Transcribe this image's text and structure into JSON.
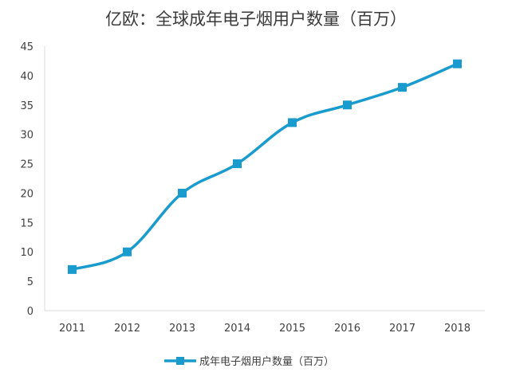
{
  "chart_data": {
    "type": "line",
    "title": "亿欧：全球成年电子烟用户数量（百万）",
    "xlabel": "",
    "ylabel": "",
    "categories": [
      "2011",
      "2012",
      "2013",
      "2014",
      "2015",
      "2016",
      "2017",
      "2018"
    ],
    "series": [
      {
        "name": "成年电子烟用户数量（百万）",
        "values": [
          7,
          10,
          20,
          25,
          32,
          35,
          38,
          42
        ],
        "color": "#1a9bce"
      }
    ],
    "ylim": [
      0,
      45
    ],
    "yticks": [
      0,
      5,
      10,
      15,
      20,
      25,
      30,
      35,
      40,
      45
    ],
    "grid": false,
    "smooth": true,
    "marker": "square",
    "legend_position": "bottom"
  }
}
